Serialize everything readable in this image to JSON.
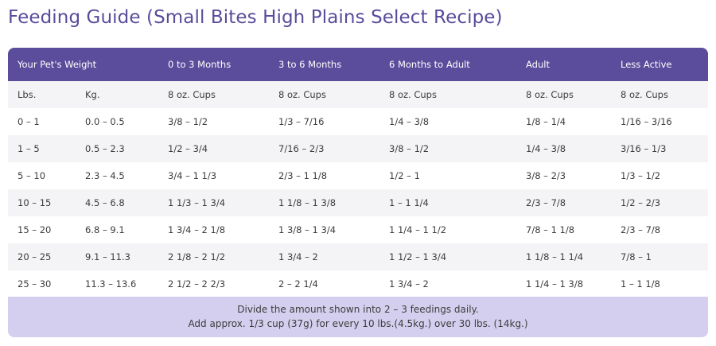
{
  "title": "Feeding Guide (Small Bites High Plains Select Recipe)",
  "header": {
    "weight": "Your Pet's Weight",
    "cols": [
      "0 to 3 Months",
      "3 to 6 Months",
      "6 Months to Adult",
      "Adult",
      "Less Active"
    ]
  },
  "units": {
    "lbs": "Lbs.",
    "kg": "Kg.",
    "cups": [
      "8 oz. Cups",
      "8 oz. Cups",
      "8 oz. Cups",
      "8 oz. Cups",
      "8 oz. Cups"
    ]
  },
  "rows": [
    {
      "lbs": "0 – 1",
      "kg": "0.0 – 0.5",
      "c": [
        "3/8 – 1/2",
        "1/3 – 7/16",
        "1/4 – 3/8",
        "1/8 – 1/4",
        "1/16 – 3/16"
      ]
    },
    {
      "lbs": "1 – 5",
      "kg": "0.5 – 2.3",
      "c": [
        "1/2 – 3/4",
        "7/16 – 2/3",
        "3/8 – 1/2",
        "1/4 – 3/8",
        "3/16 – 1/3"
      ]
    },
    {
      "lbs": "5 – 10",
      "kg": "2.3 – 4.5",
      "c": [
        "3/4 – 1 1/3",
        "2/3 – 1 1/8",
        "1/2 – 1",
        "3/8 – 2/3",
        "1/3 – 1/2"
      ]
    },
    {
      "lbs": "10 – 15",
      "kg": "4.5 – 6.8",
      "c": [
        "1 1/3 – 1 3/4",
        "1 1/8 – 1 3/8",
        "1 – 1 1/4",
        "2/3 – 7/8",
        "1/2 – 2/3"
      ]
    },
    {
      "lbs": "15 – 20",
      "kg": "6.8 – 9.1",
      "c": [
        "1 3/4 – 2 1/8",
        "1 3/8 – 1 3/4",
        "1 1/4 – 1 1/2",
        "7/8 – 1 1/8",
        "2/3 – 7/8"
      ]
    },
    {
      "lbs": "20 – 25",
      "kg": "9.1 – 11.3",
      "c": [
        "2 1/8 – 2 1/2",
        "1 3/4 – 2",
        "1 1/2 – 1 3/4",
        "1 1/8 – 1 1/4",
        "7/8 – 1"
      ]
    },
    {
      "lbs": "25 – 30",
      "kg": "11.3 – 13.6",
      "c": [
        "2 1/2 – 2 2/3",
        "2 – 2 1/4",
        "1 3/4 – 2",
        "1 1/4 – 1 3/8",
        "1 – 1 1/8"
      ]
    }
  ],
  "footer": {
    "line1": "Divide the amount shown into 2 – 3 feedings daily.",
    "line2": "Add approx. 1/3 cup (37g) for every 10 lbs.(4.5kg.) over 30 lbs. (14kg.)"
  },
  "colors": {
    "title": "#5a4b9b",
    "header_bg": "#5b4d9b",
    "footer_bg": "#d4cfee",
    "row_alt": "#ffffff",
    "row_plain": "#f4f4f6"
  }
}
